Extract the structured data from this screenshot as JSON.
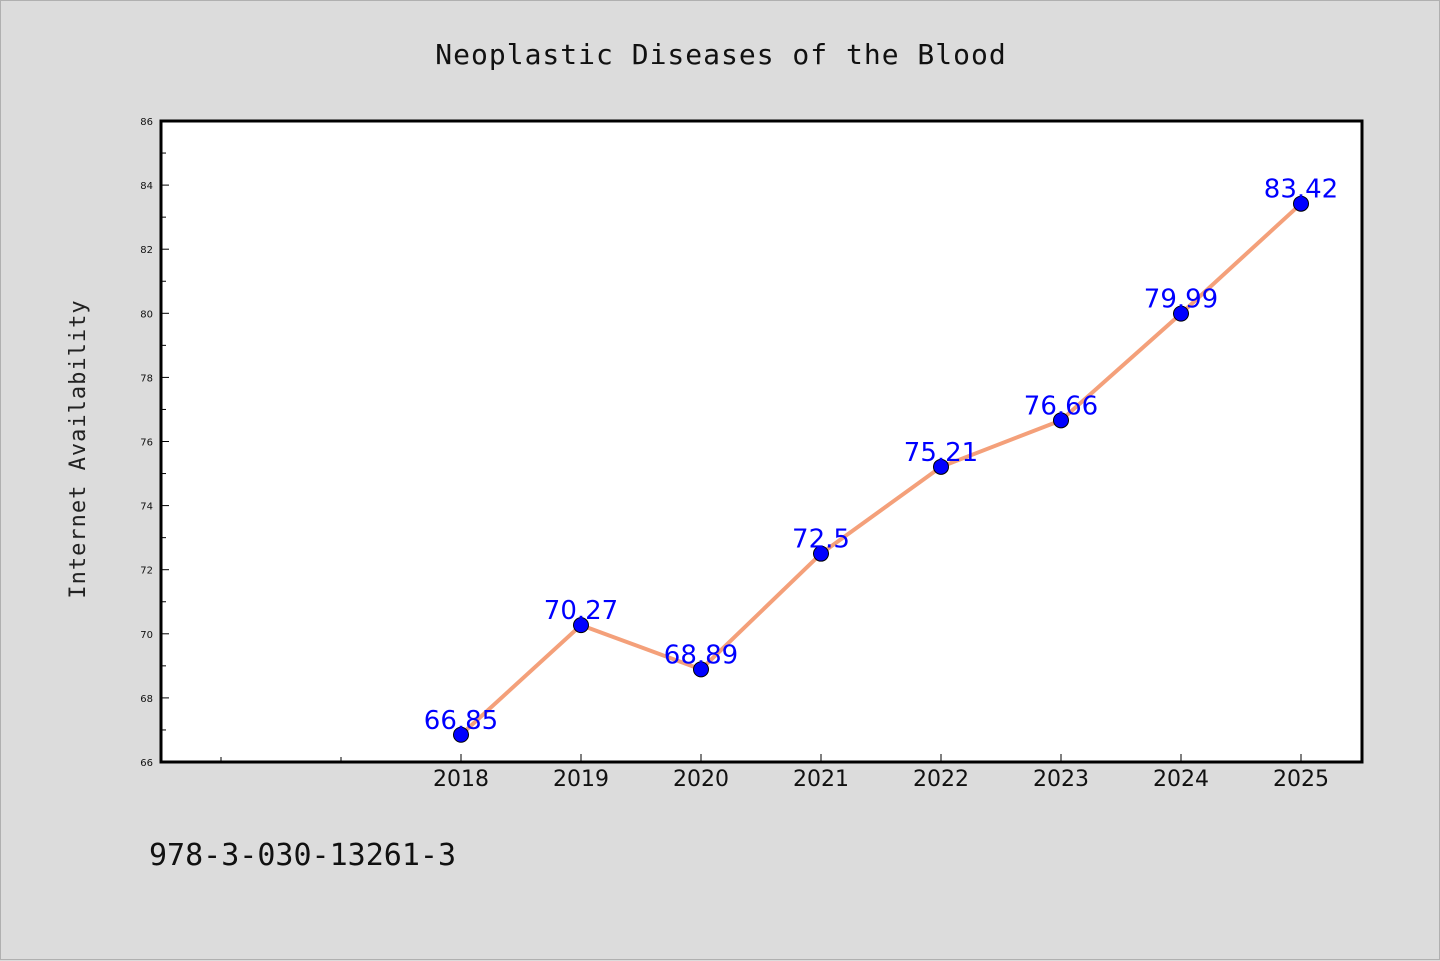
{
  "chart_data": {
    "type": "line",
    "title": "Neoplastic Diseases of the Blood",
    "xlabel": "",
    "ylabel": "Internet Availability",
    "categories": [
      "2018",
      "2019",
      "2020",
      "2021",
      "2022",
      "2023",
      "2024",
      "2025"
    ],
    "values": [
      66.85,
      70.27,
      68.89,
      72.5,
      75.21,
      76.66,
      79.99,
      83.42
    ],
    "data_labels": [
      "66.85",
      "70.27",
      "68.89",
      "72.5",
      "75.21",
      "76.66",
      "79.99",
      "83.42"
    ],
    "ylim": [
      66,
      86
    ],
    "yticks": [
      "66",
      "68",
      "70",
      "72",
      "74",
      "76",
      "78",
      "80",
      "82",
      "84",
      "86"
    ],
    "grid": false,
    "legend": "none",
    "line_color": "#f4a07a",
    "marker_color": "#0000ff",
    "label_color": "#0000ff"
  },
  "footer_text": "978-3-030-13261-3"
}
